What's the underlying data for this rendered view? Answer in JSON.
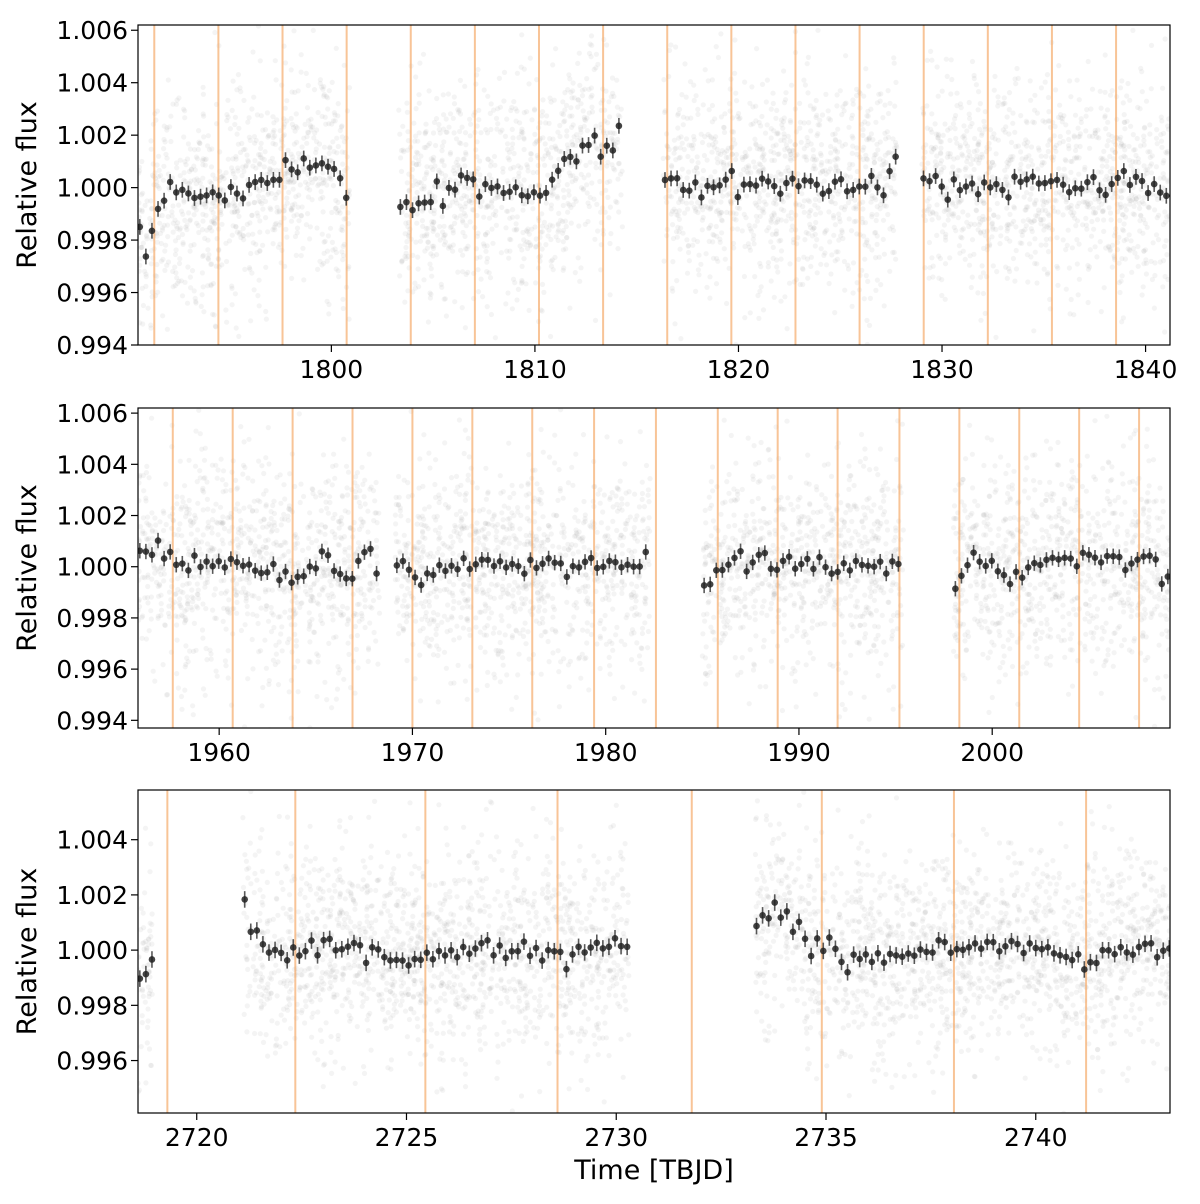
{
  "chart_data": [
    {
      "type": "scatter",
      "title": "",
      "xlabel": "",
      "ylabel": "Relative flux",
      "xlim": [
        1790.5,
        1841.2
      ],
      "ylim": [
        0.994,
        1.0062
      ],
      "xticks": [
        1800,
        1810,
        1820,
        1830,
        1840
      ],
      "xtick_labels": [
        "1800",
        "1810",
        "1820",
        "1830",
        "1840"
      ],
      "yticks": [
        0.994,
        0.996,
        0.998,
        1.0,
        1.002,
        1.004,
        1.006
      ],
      "ytick_labels": [
        "0.994",
        "0.996",
        "0.998",
        "1.000",
        "1.002",
        "1.004",
        "1.006"
      ],
      "segments": [
        [
          1790.5,
          1800.9
        ],
        [
          1803.3,
          1814.3
        ],
        [
          1816.3,
          1827.8
        ],
        [
          1829.0,
          1841.2
        ]
      ],
      "raw_scatter": {
        "scatter_sd": 0.0021,
        "color": "#9e9e9e"
      },
      "transit_times": [
        1791.3,
        1794.45,
        1797.6,
        1800.75,
        1803.9,
        1807.05,
        1810.2,
        1813.35,
        1816.5,
        1819.65,
        1822.8,
        1825.95,
        1829.1,
        1832.25,
        1835.4,
        1838.55
      ],
      "binned_trend": [
        [
          1790.5,
          0.9988
        ],
        [
          1790.9,
          0.9973
        ],
        [
          1791.3,
          0.9985
        ],
        [
          1792.0,
          1.0
        ],
        [
          1793.0,
          0.9995
        ],
        [
          1794.5,
          0.9996
        ],
        [
          1796.0,
          1.0002
        ],
        [
          1798.0,
          1.0006
        ],
        [
          1799.2,
          1.001
        ],
        [
          1800.2,
          1.0003
        ],
        [
          1800.9,
          0.9994
        ],
        [
          1803.3,
          0.9993
        ],
        [
          1805.0,
          0.9998
        ],
        [
          1806.5,
          1.0002
        ],
        [
          1808.0,
          0.9999
        ],
        [
          1810.0,
          0.9997
        ],
        [
          1811.0,
          1.0003
        ],
        [
          1812.0,
          1.0013
        ],
        [
          1813.0,
          1.0017
        ],
        [
          1813.6,
          1.0015
        ],
        [
          1814.0,
          1.0012
        ],
        [
          1814.2,
          1.0024
        ],
        [
          1816.3,
          1.0005
        ],
        [
          1818.0,
          1.0001
        ],
        [
          1820.0,
          1.0001
        ],
        [
          1822.0,
          1.0003
        ],
        [
          1824.0,
          1.0
        ],
        [
          1826.0,
          1.0
        ],
        [
          1827.5,
          1.0005
        ],
        [
          1827.8,
          1.0016
        ],
        [
          1829.0,
          1.0003
        ],
        [
          1831.0,
          1.0
        ],
        [
          1833.0,
          1.0001
        ],
        [
          1835.0,
          1.0001
        ],
        [
          1837.0,
          1.0
        ],
        [
          1839.0,
          1.0002
        ],
        [
          1841.2,
          0.9998
        ]
      ],
      "binned_error": 0.0003
    },
    {
      "type": "scatter",
      "title": "",
      "xlabel": "",
      "ylabel": "Relative flux",
      "xlim": [
        1955.8,
        2009.2
      ],
      "ylim": [
        0.9937,
        1.0062
      ],
      "xticks": [
        1960,
        1970,
        1980,
        1990,
        2000
      ],
      "xtick_labels": [
        "1960",
        "1970",
        "1980",
        "1990",
        "2000"
      ],
      "yticks": [
        0.994,
        0.996,
        0.998,
        1.0,
        1.002,
        1.004,
        1.006
      ],
      "ytick_labels": [
        "0.994",
        "0.996",
        "0.998",
        "1.000",
        "1.002",
        "1.004",
        "1.006"
      ],
      "segments": [
        [
          1955.8,
          1968.3
        ],
        [
          1969.1,
          1982.3
        ],
        [
          1985.0,
          1995.4
        ],
        [
          1998.0,
          2009.2
        ]
      ],
      "raw_scatter": {
        "scatter_sd": 0.0021,
        "color": "#9e9e9e"
      },
      "transit_times": [
        1957.6,
        1960.7,
        1963.8,
        1966.9,
        1970.0,
        1973.1,
        1976.2,
        1979.4,
        1982.6,
        1985.8,
        1988.9,
        1992.0,
        1995.2,
        1998.3,
        2001.4,
        2004.5,
        2007.6
      ],
      "binned_trend": [
        [
          1955.8,
          1.0003
        ],
        [
          1956.5,
          1.0006
        ],
        [
          1958.0,
          1.0
        ],
        [
          1960.0,
          1.0002
        ],
        [
          1962.0,
          1.0001
        ],
        [
          1964.0,
          0.9996
        ],
        [
          1965.5,
          1.0003
        ],
        [
          1966.8,
          0.9996
        ],
        [
          1967.5,
          1.0006
        ],
        [
          1968.3,
          0.9995
        ],
        [
          1969.1,
          1.0005
        ],
        [
          1970.0,
          0.9996
        ],
        [
          1972.0,
          1.0002
        ],
        [
          1974.0,
          1.0
        ],
        [
          1976.0,
          1.0001
        ],
        [
          1978.0,
          1.0
        ],
        [
          1980.0,
          1.0001
        ],
        [
          1982.0,
          1.0
        ],
        [
          1982.3,
          1.0012
        ],
        [
          1985.0,
          0.9989
        ],
        [
          1986.0,
          0.9999
        ],
        [
          1988.0,
          1.0004
        ],
        [
          1990.0,
          1.0001
        ],
        [
          1992.0,
          1.0
        ],
        [
          1994.0,
          1.0002
        ],
        [
          1995.4,
          1.0003
        ],
        [
          1998.0,
          0.9991
        ],
        [
          1999.0,
          1.0004
        ],
        [
          2001.0,
          0.9998
        ],
        [
          2003.0,
          1.0001
        ],
        [
          2005.0,
          1.0003
        ],
        [
          2007.0,
          1.0002
        ],
        [
          2008.5,
          0.9999
        ],
        [
          2009.2,
          0.9995
        ]
      ],
      "binned_error": 0.0003
    },
    {
      "type": "scatter",
      "title": "",
      "xlabel": "Time [TBJD]",
      "ylabel": "Relative flux",
      "xlim": [
        2718.6,
        2743.2
      ],
      "ylim": [
        0.9941,
        1.0058
      ],
      "xticks": [
        2720,
        2725,
        2730,
        2735,
        2740
      ],
      "xtick_labels": [
        "2720",
        "2725",
        "2730",
        "2735",
        "2740"
      ],
      "yticks": [
        0.996,
        0.998,
        1.0,
        1.002,
        1.004
      ],
      "ytick_labels": [
        "0.996",
        "0.998",
        "1.000",
        "1.002",
        "1.004"
      ],
      "segments": [
        [
          2718.6,
          2718.95
        ],
        [
          2721.1,
          2730.3
        ],
        [
          2733.3,
          2743.2
        ]
      ],
      "raw_scatter": {
        "scatter_sd": 0.0019,
        "color": "#9e9e9e"
      },
      "transit_times": [
        2719.3,
        2722.35,
        2725.45,
        2728.6,
        2731.8,
        2734.9,
        2738.05,
        2741.2
      ],
      "binned_trend": [
        [
          2718.6,
          0.9987
        ],
        [
          2718.9,
          0.9995
        ],
        [
          2721.1,
          1.0016
        ],
        [
          2721.4,
          1.0005
        ],
        [
          2722.0,
          0.9998
        ],
        [
          2723.0,
          1.0001
        ],
        [
          2724.0,
          1.0001
        ],
        [
          2725.0,
          0.9997
        ],
        [
          2726.0,
          0.9998
        ],
        [
          2727.0,
          1.0
        ],
        [
          2728.0,
          0.9998
        ],
        [
          2729.0,
          0.9999
        ],
        [
          2730.3,
          1.0
        ],
        [
          2733.3,
          1.001
        ],
        [
          2733.8,
          1.0015
        ],
        [
          2734.5,
          1.0003
        ],
        [
          2735.5,
          0.9998
        ],
        [
          2737.0,
          0.9998
        ],
        [
          2738.0,
          1.0
        ],
        [
          2739.0,
          1.0002
        ],
        [
          2740.0,
          1.0
        ],
        [
          2741.2,
          0.9996
        ],
        [
          2742.0,
          1.0
        ],
        [
          2743.2,
          1.0002
        ]
      ],
      "binned_error": 0.0003
    }
  ]
}
